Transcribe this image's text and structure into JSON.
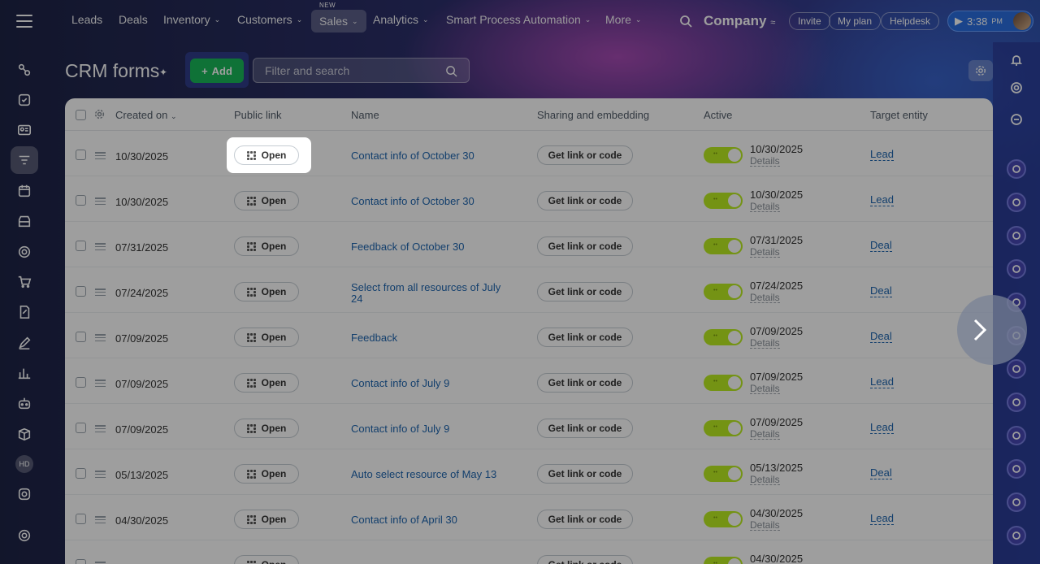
{
  "topnav": {
    "items": [
      {
        "label": "Leads"
      },
      {
        "label": "Deals"
      },
      {
        "label": "Inventory"
      },
      {
        "label": "Customers"
      },
      {
        "label": "Sales",
        "badge": "NEW"
      },
      {
        "label": "Analytics"
      },
      {
        "label": "Smart Process Automation"
      },
      {
        "label": "More"
      }
    ],
    "company": "Company",
    "invite": "Invite",
    "my_plan": "My plan",
    "helpdesk": "Helpdesk",
    "time": "3:38",
    "time_suffix": "PM"
  },
  "page": {
    "title": "CRM forms",
    "add_label": "Add",
    "search_placeholder": "Filter and search"
  },
  "sidebar": {
    "initials": "HD",
    "icons": [
      "connections-icon",
      "tasks-icon",
      "contact-card-icon",
      "filter-icon",
      "calendar-icon",
      "store-icon",
      "target-icon",
      "cart-icon",
      "document-sign-icon",
      "pen-icon",
      "bar-chart-icon",
      "robot-icon",
      "box-icon",
      "avatar-hd",
      "camera-icon",
      "settings-icon"
    ]
  },
  "table": {
    "headers": {
      "created_on": "Created on",
      "public_link": "Public link",
      "name": "Name",
      "sharing": "Sharing and embedding",
      "active": "Active",
      "target": "Target entity"
    },
    "open_label": "Open",
    "share_label": "Get link or code",
    "details_label": "Details",
    "rows": [
      {
        "created": "10/30/2025",
        "name": "Contact info of October 30",
        "active_date": "10/30/2025",
        "target": "Lead"
      },
      {
        "created": "10/30/2025",
        "name": "Contact info of October 30",
        "active_date": "10/30/2025",
        "target": "Lead"
      },
      {
        "created": "07/31/2025",
        "name": "Feedback of October 30",
        "active_date": "07/31/2025",
        "target": "Deal"
      },
      {
        "created": "07/24/2025",
        "name": "Select from all resources of July 24",
        "active_date": "07/24/2025",
        "target": "Deal"
      },
      {
        "created": "07/09/2025",
        "name": "Feedback",
        "active_date": "07/09/2025",
        "target": "Deal"
      },
      {
        "created": "07/09/2025",
        "name": "Contact info of July 9",
        "active_date": "07/09/2025",
        "target": "Lead"
      },
      {
        "created": "07/09/2025",
        "name": "Contact info of July 9",
        "active_date": "07/09/2025",
        "target": "Lead"
      },
      {
        "created": "05/13/2025",
        "name": "Auto select resource of May 13",
        "active_date": "05/13/2025",
        "target": "Deal"
      },
      {
        "created": "04/30/2025",
        "name": "Contact info of April 30",
        "active_date": "04/30/2025",
        "target": "Lead"
      },
      {
        "created": "",
        "name": "",
        "active_date": "04/30/2025",
        "target": ""
      }
    ]
  },
  "colors": {
    "accent_green": "#19b85a",
    "toggle": "#bbed21",
    "link": "#2067b0"
  }
}
